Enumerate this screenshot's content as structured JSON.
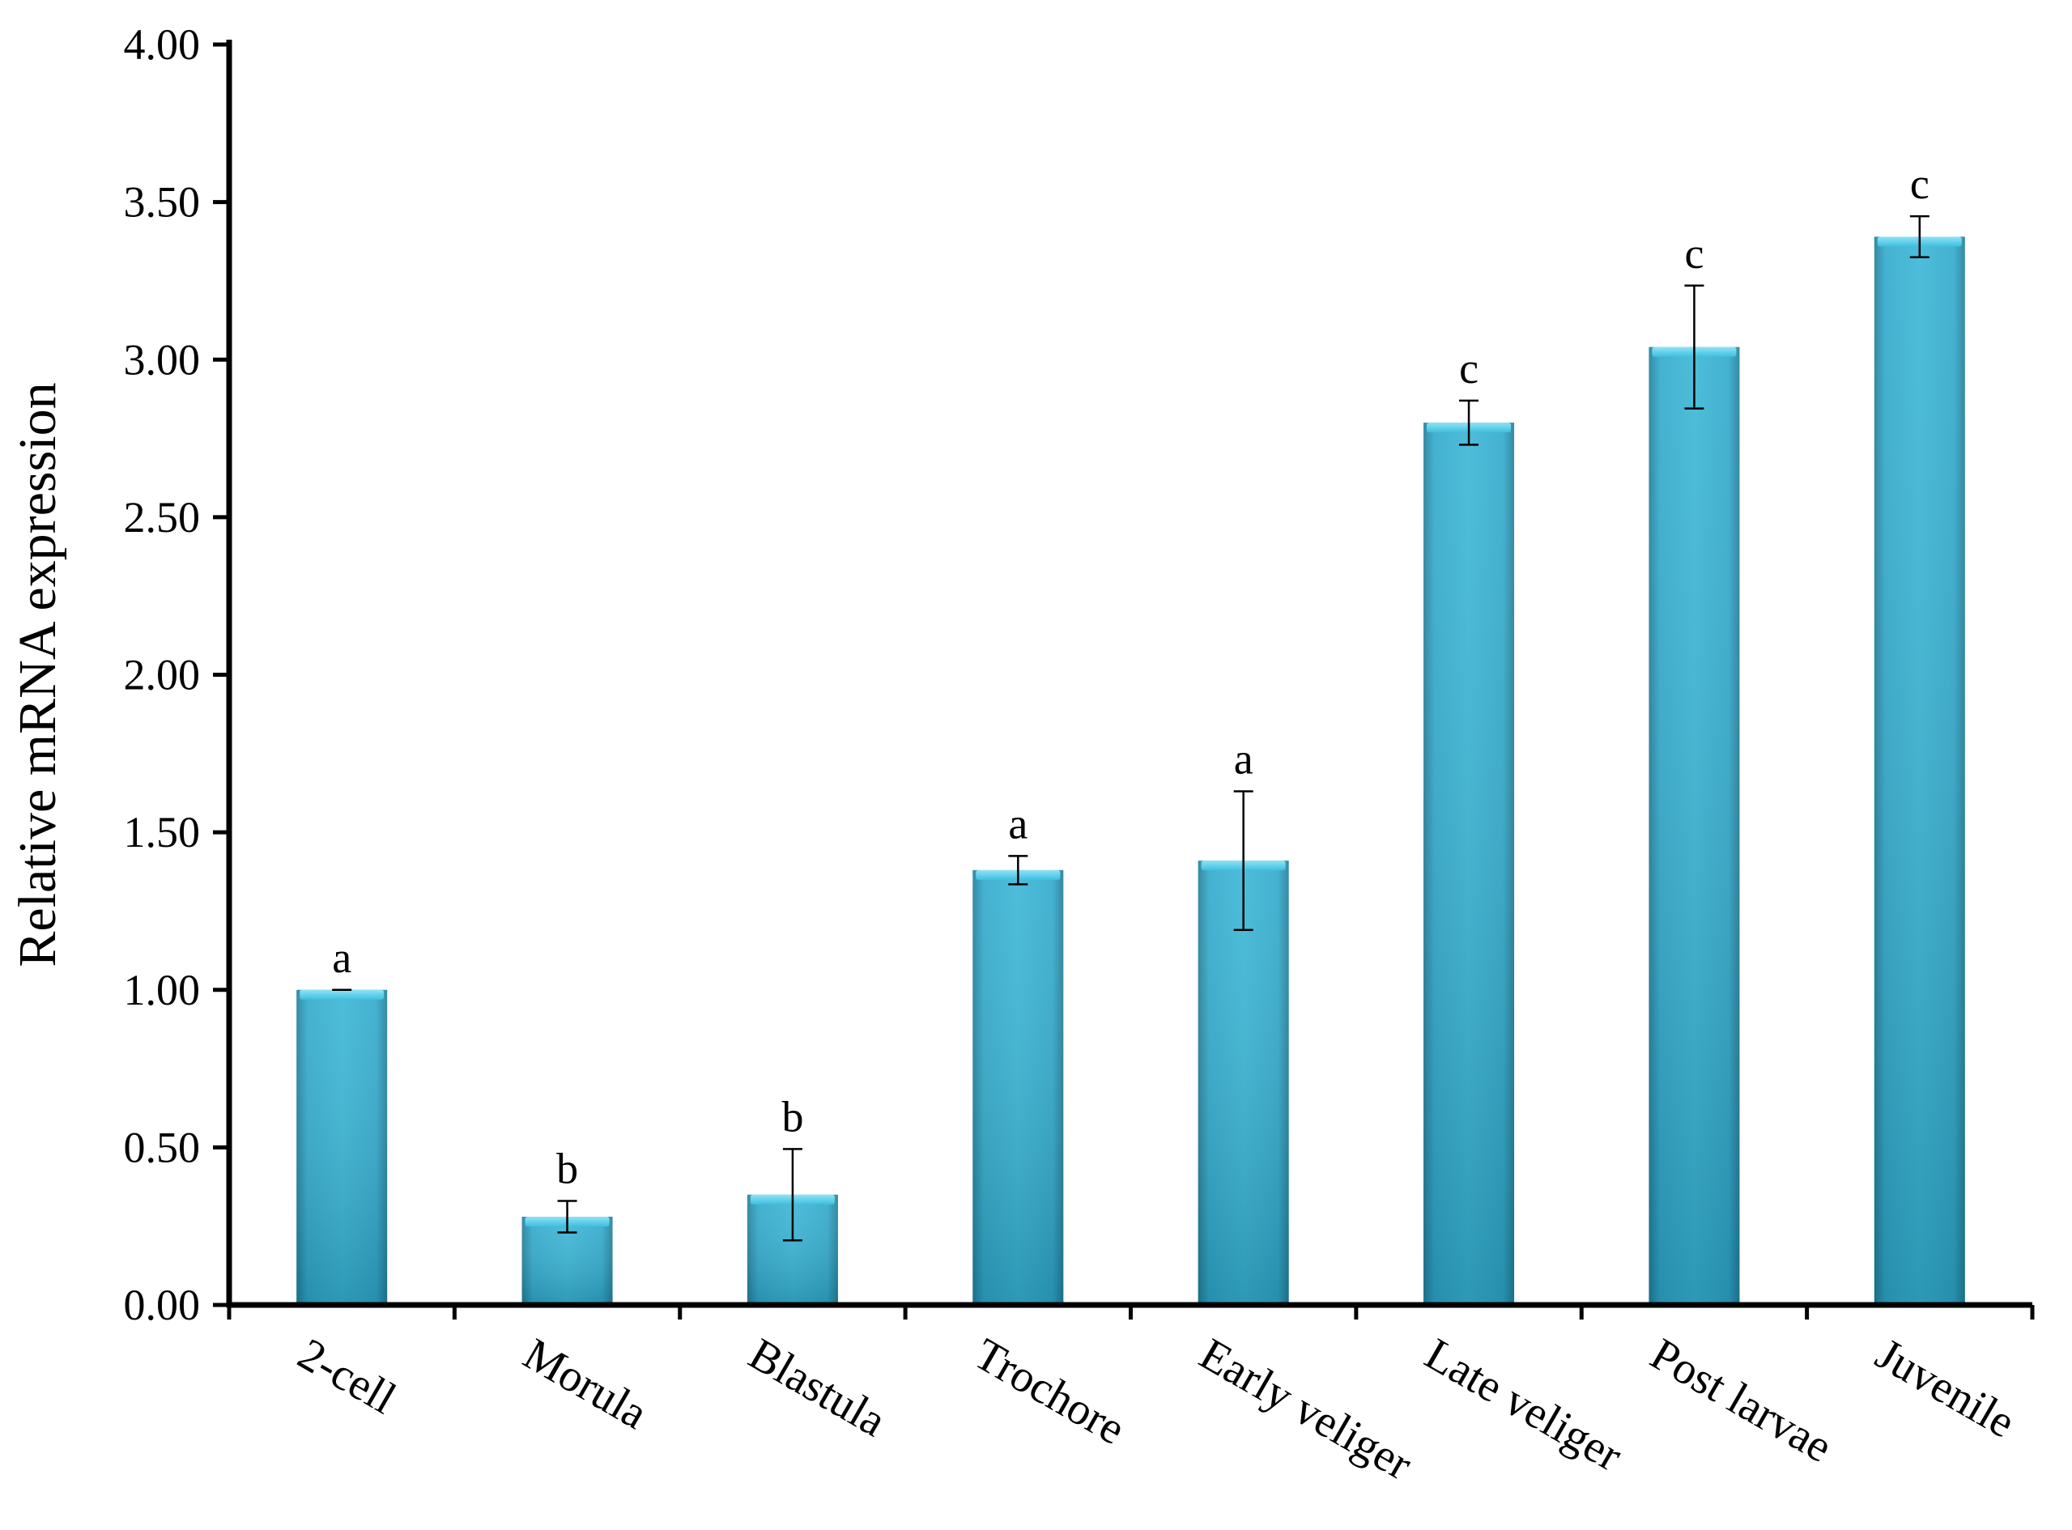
{
  "chart_data": {
    "type": "bar",
    "title": "",
    "xlabel": "",
    "ylabel": "Relative  mRNA expression",
    "categories": [
      "2-cell",
      "Morula",
      "Blastula",
      "Trochore",
      "Early veliger",
      "Late veliger",
      "Post larvae",
      "Juvenile"
    ],
    "values": [
      1.0,
      0.28,
      0.35,
      1.38,
      1.41,
      2.8,
      3.04,
      3.39
    ],
    "error": [
      0.0,
      0.05,
      0.145,
      0.045,
      0.22,
      0.07,
      0.195,
      0.065
    ],
    "significance_labels": [
      "a",
      "b",
      "b",
      "a",
      "a",
      "c",
      "c",
      "c"
    ],
    "ylim": [
      0,
      4
    ],
    "yticks": [
      "0.00",
      "0.50",
      "1.00",
      "1.50",
      "2.00",
      "2.50",
      "3.00",
      "3.50",
      "4.00"
    ],
    "grid": false,
    "legend": "none",
    "colors": {
      "bar_light": "#4fc8e6",
      "bar_mid": "#2fa9cb",
      "bar_dark": "#1f7d99",
      "axis": "#000000"
    }
  }
}
